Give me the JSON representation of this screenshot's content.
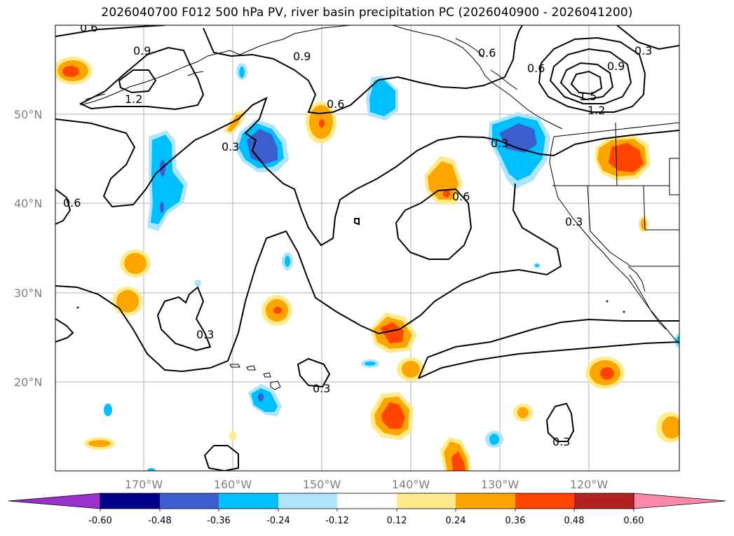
{
  "title": "2026040700 F012 500 hPa PV, river basin precipitation PC (2026040900 - 2026041200)",
  "map": {
    "lat_labels": [
      "50°N",
      "40°N",
      "30°N",
      "20°N"
    ],
    "lon_labels": [
      "170°W",
      "160°W",
      "150°W",
      "140°W",
      "130°W",
      "120°W"
    ],
    "contour_labels": [
      "0.6",
      "0.9",
      "1.2",
      "0.9",
      "0.3",
      "0.6",
      "0.6",
      "0.9",
      "0.3",
      "1.5",
      "1.2",
      "0.3",
      "0.6",
      "0.3",
      "0.6",
      "0.6",
      "0.3",
      "0.3",
      "0.3"
    ],
    "colors": {
      "contour": "#000000",
      "coast": "#000000",
      "grid": "#b0b0b0"
    }
  },
  "colorbar": {
    "levels": [
      "-0.60",
      "-0.48",
      "-0.36",
      "-0.24",
      "-0.12",
      "0.12",
      "0.24",
      "0.36",
      "0.48",
      "0.60"
    ],
    "colors": [
      "#9932cc",
      "#00008b",
      "#3a5fcd",
      "#00bfff",
      "#afe4fd",
      "#ffffff",
      "#ffeb8c",
      "#ffa500",
      "#ff4500",
      "#b22222",
      "#ff88aa"
    ]
  }
}
